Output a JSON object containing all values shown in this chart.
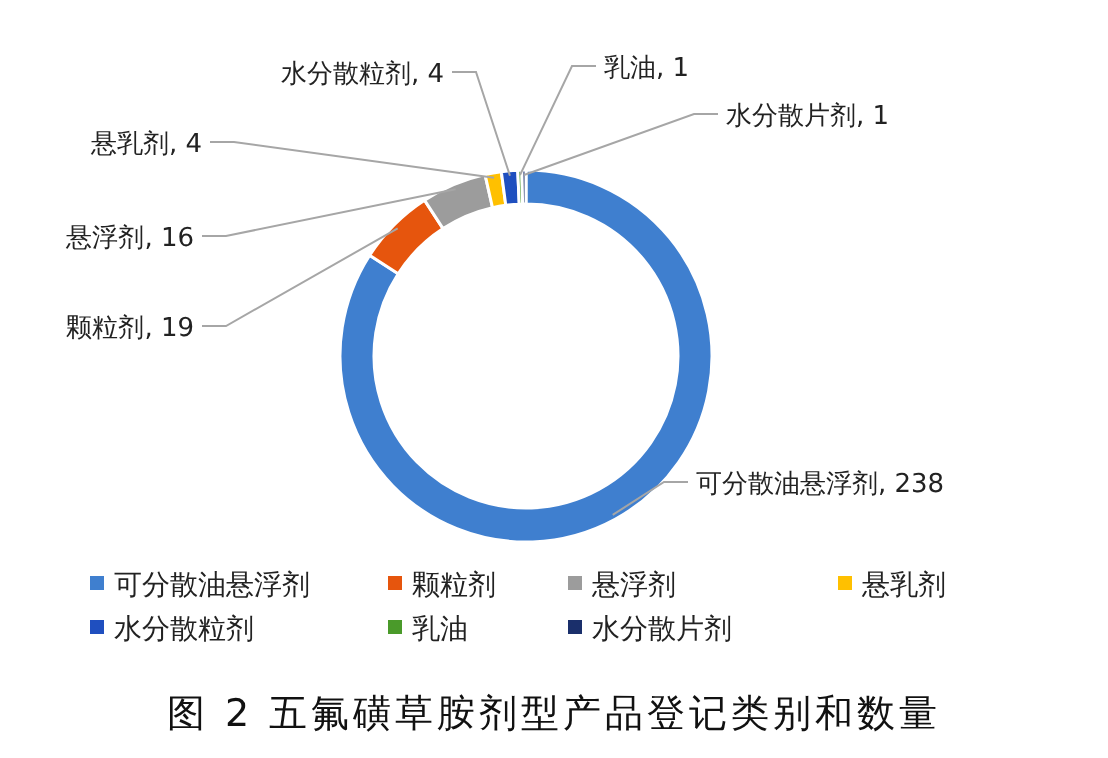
{
  "chart_data": {
    "type": "donut",
    "categories": [
      "可分散油悬浮剂",
      "颗粒剂",
      "悬浮剂",
      "悬乳剂",
      "水分散粒剂",
      "乳油",
      "水分散片剂"
    ],
    "values": [
      238,
      19,
      16,
      4,
      4,
      1,
      1
    ],
    "colors": [
      "#3f7fcf",
      "#e6550d",
      "#9c9c9c",
      "#ffc000",
      "#1f4fbf",
      "#4a9a2a",
      "#1a2f6b"
    ],
    "value_labels": [
      ", 238",
      ", 19",
      ", 16",
      ", 4",
      ", 4",
      ", 1",
      ", 1"
    ],
    "legend": "bottom",
    "annotations": [
      "图 2 五氟磺草胺剂型产品登记类别和数量"
    ]
  }
}
